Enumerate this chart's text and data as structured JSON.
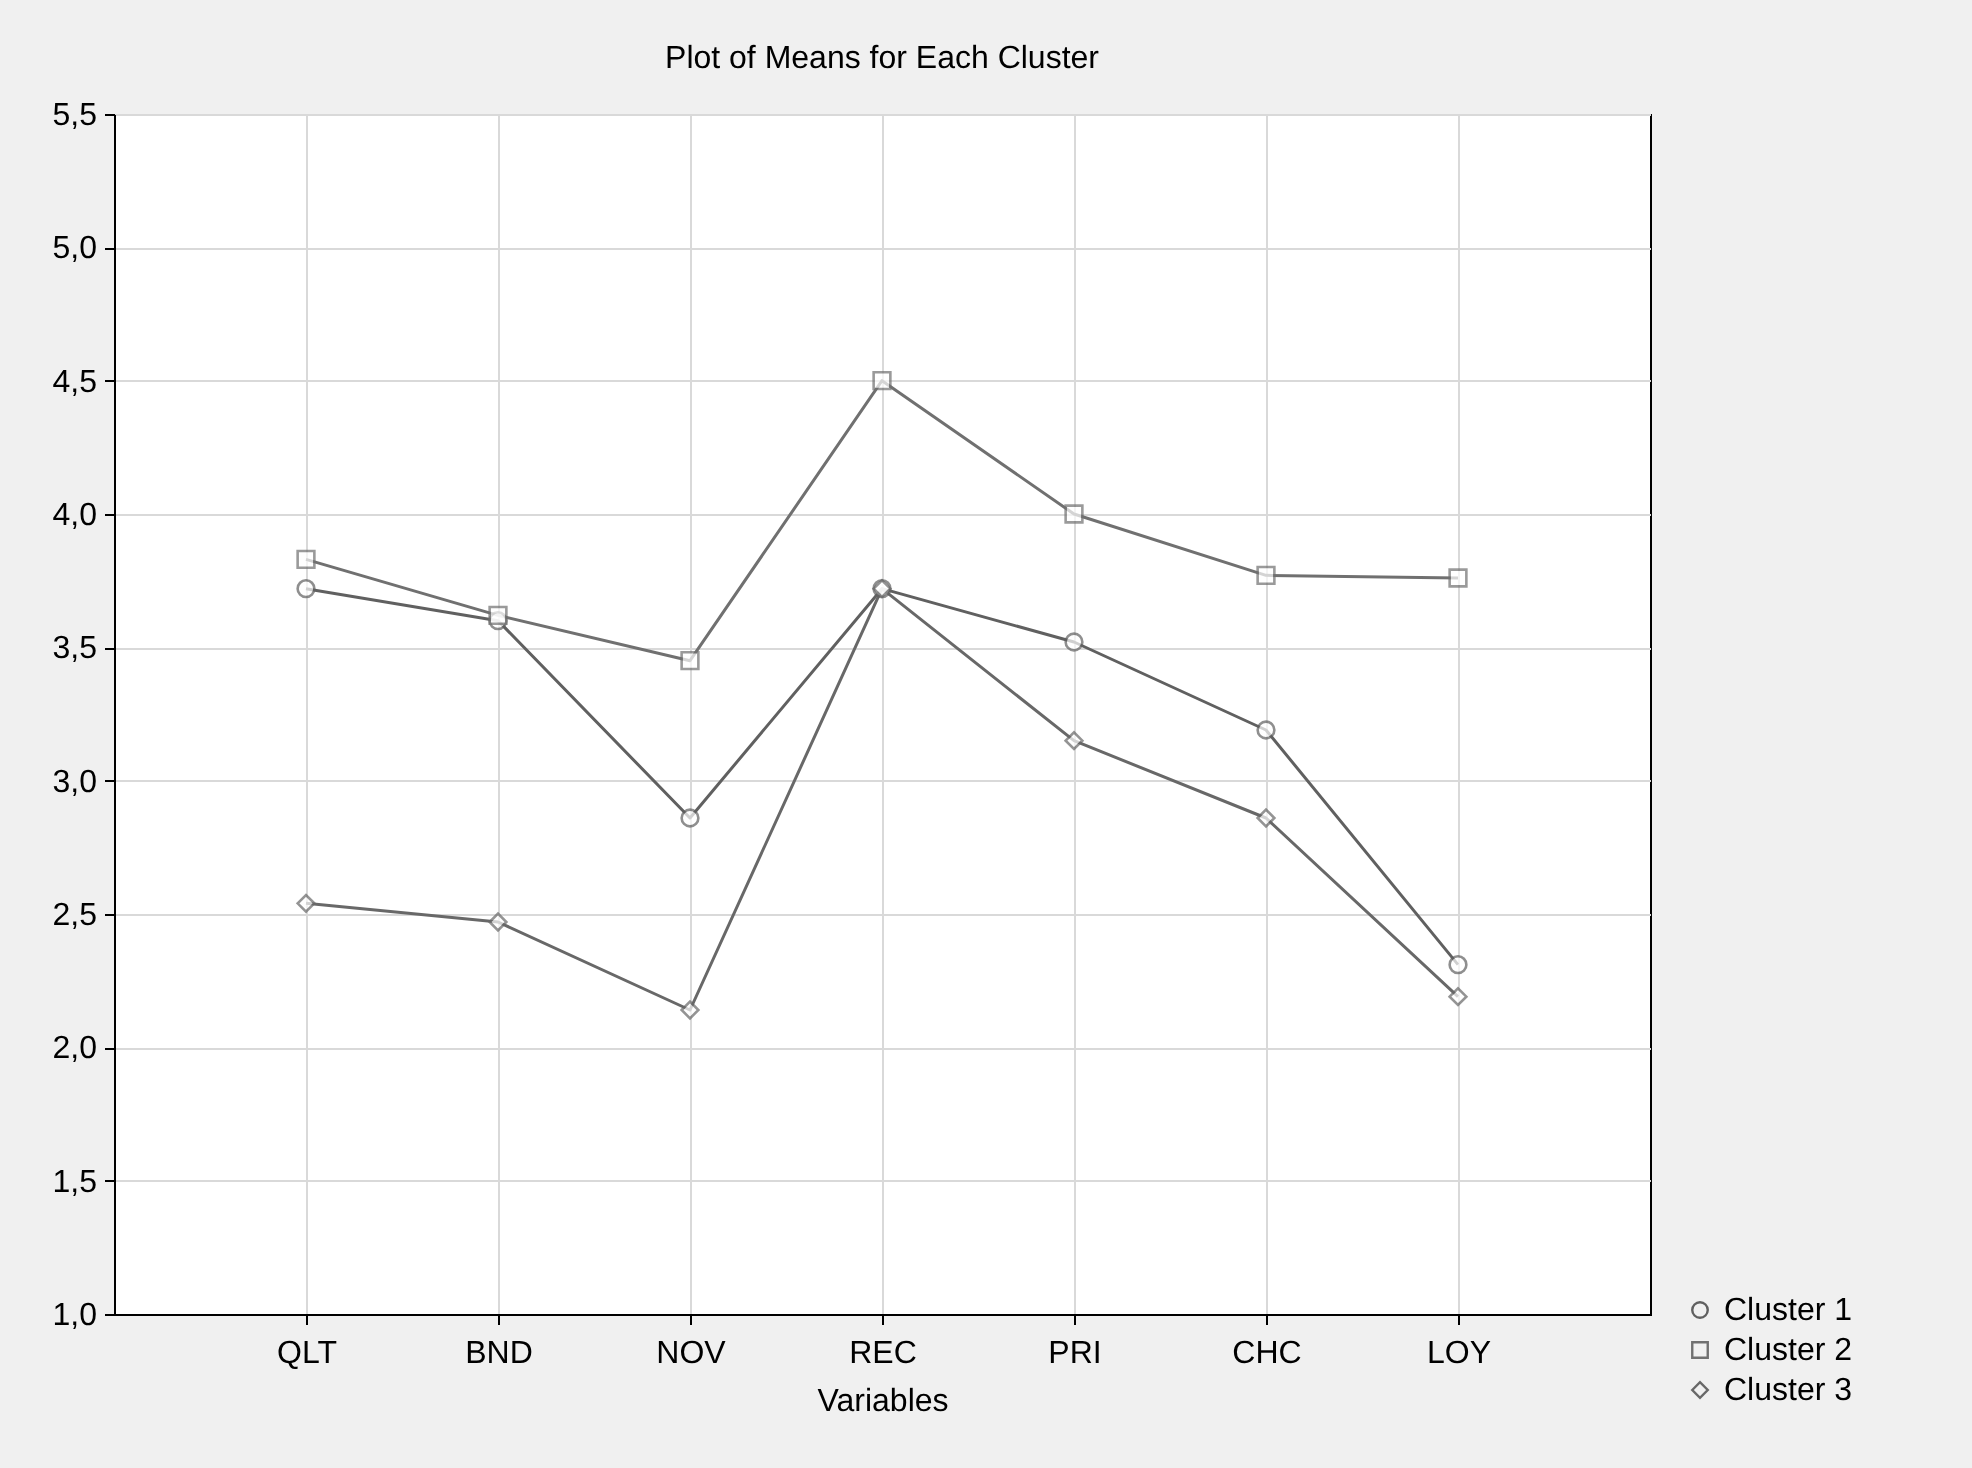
{
  "chart_data": {
    "type": "line",
    "title": "Plot of Means for Each Cluster",
    "xlabel": "Variables",
    "categories": [
      "QLT",
      "BND",
      "NOV",
      "REC",
      "PRI",
      "CHC",
      "LOY"
    ],
    "series": [
      {
        "name": "Cluster 1",
        "color": "#606060",
        "marker": "circle",
        "values": [
          3.72,
          3.6,
          2.86,
          3.72,
          3.52,
          3.19,
          2.31
        ]
      },
      {
        "name": "Cluster 2",
        "color": "#707070",
        "marker": "square",
        "values": [
          3.83,
          3.62,
          3.45,
          4.5,
          4.0,
          3.77,
          3.76
        ]
      },
      {
        "name": "Cluster 3",
        "color": "#686868",
        "marker": "diamond",
        "values": [
          2.54,
          2.47,
          2.14,
          3.72,
          3.15,
          2.86,
          2.19
        ]
      }
    ],
    "ylim": [
      1.0,
      5.5
    ],
    "yticks": [
      {
        "value": 1.0,
        "label": "1,0"
      },
      {
        "value": 1.5,
        "label": "1,5"
      },
      {
        "value": 2.0,
        "label": "2,0"
      },
      {
        "value": 2.5,
        "label": "2,5"
      },
      {
        "value": 3.0,
        "label": "3,0"
      },
      {
        "value": 3.5,
        "label": "3,5"
      },
      {
        "value": 4.0,
        "label": "4,0"
      },
      {
        "value": 4.5,
        "label": "4,5"
      },
      {
        "value": 5.0,
        "label": "5,0"
      },
      {
        "value": 5.5,
        "label": "5,5"
      }
    ],
    "grid": true,
    "legend": "bottom right",
    "line_style": "solid"
  }
}
